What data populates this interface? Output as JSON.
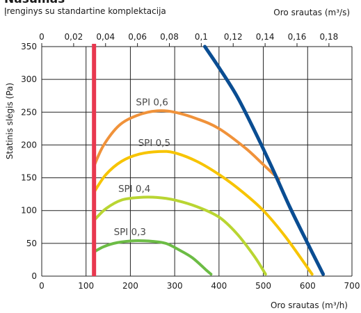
{
  "header": {
    "title": "Našumas",
    "subtitle": "Įrenginys su standartine komplektacija",
    "top_unit": "Oro srautas (m³/s)"
  },
  "chart_data": {
    "type": "line",
    "title": "Našumas",
    "subtitle": "Įrenginys su standartine komplektacija",
    "xlabel": "Oro srautas (m³/h)",
    "x2label": "Oro srautas (m³/s)",
    "ylabel": "Statinis slėgis (Pa)",
    "xlim": [
      0,
      700
    ],
    "x2lim": [
      0,
      0.19444
    ],
    "ylim": [
      0,
      350
    ],
    "x_ticks": [
      "0",
      "100",
      "200",
      "300",
      "400",
      "500",
      "600",
      "700"
    ],
    "x_tick_values": [
      0,
      100,
      200,
      300,
      400,
      500,
      600,
      700
    ],
    "x2_ticks": [
      "0",
      "0,02",
      "0,04",
      "0,06",
      "0,08",
      "0,1",
      "0,12",
      "0,14",
      "0,16",
      "0,18"
    ],
    "x2_tick_values": [
      0,
      0.02,
      0.04,
      0.06,
      0.08,
      0.1,
      0.12,
      0.14,
      0.16,
      0.18
    ],
    "y_ticks": [
      "0",
      "50",
      "100",
      "150",
      "200",
      "250",
      "300",
      "350"
    ],
    "y_tick_values": [
      0,
      50,
      100,
      150,
      200,
      250,
      300,
      350
    ],
    "grid": true,
    "series": [
      {
        "name": "SPI 0,6",
        "color": "#f0923a",
        "x": [
          118,
          140,
          175,
          215,
          260,
          300,
          350,
          400,
          460,
          500,
          535
        ],
        "y": [
          168,
          200,
          230,
          245,
          252,
          250,
          240,
          225,
          195,
          170,
          148
        ]
      },
      {
        "name": "SPI 0,5",
        "color": "#f7c400",
        "x": [
          118,
          145,
          180,
          220,
          265,
          300,
          350,
          400,
          450,
          500,
          550,
          610
        ],
        "y": [
          128,
          155,
          175,
          186,
          190,
          188,
          175,
          155,
          130,
          100,
          60,
          3
        ]
      },
      {
        "name": "SPI 0,4",
        "color": "#b9d532",
        "x": [
          118,
          145,
          180,
          220,
          260,
          300,
          350,
          400,
          440,
          480,
          505
        ],
        "y": [
          85,
          103,
          116,
          120,
          120,
          116,
          106,
          90,
          65,
          30,
          3
        ]
      },
      {
        "name": "SPI 0,3",
        "color": "#6cbc45",
        "x": [
          118,
          140,
          170,
          210,
          250,
          280,
          310,
          340,
          370,
          382
        ],
        "y": [
          37,
          45,
          51,
          54,
          53,
          50,
          40,
          28,
          10,
          3
        ]
      },
      {
        "name": "",
        "color": "#0a4d92",
        "x": [
          368,
          400,
          440,
          480,
          520,
          560,
          600,
          635
        ],
        "y": [
          350,
          318,
          275,
          222,
          165,
          105,
          50,
          3
        ]
      }
    ],
    "min_airflow_marker": {
      "x": 118,
      "color": "#e8384f"
    },
    "curve_labels": [
      {
        "text": "SPI 0,6",
        "series": 0
      },
      {
        "text": "SPI 0,5",
        "series": 1
      },
      {
        "text": "SPI 0,4",
        "series": 2
      },
      {
        "text": "SPI 0,3",
        "series": 3
      }
    ]
  }
}
